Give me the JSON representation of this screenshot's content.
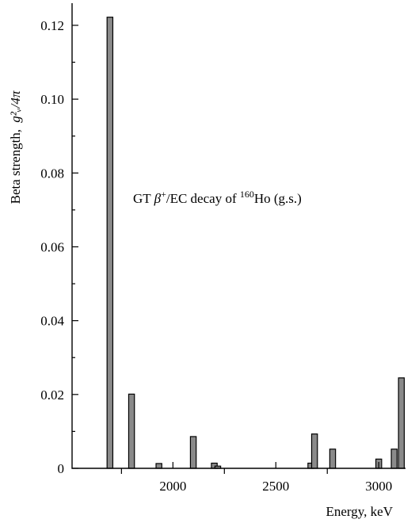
{
  "chart_data": {
    "type": "bar",
    "title": "",
    "xlabel": "Energy, keV",
    "ylabel": "Beta strength,",
    "ylabel_formula": "g²ᵥ/4π",
    "annotation": {
      "prefix": "GT ",
      "beta": "β",
      "plus": "+",
      "mid": "/EC decay of ",
      "mass": "160",
      "tail": "Ho (g.s.)"
    },
    "xlim": [
      1510,
      3130
    ],
    "ylim": [
      0,
      0.126
    ],
    "x_ticks": [
      {
        "value": 2000,
        "label": "2000"
      },
      {
        "value": 2500,
        "label": "2500"
      },
      {
        "value": 3000,
        "label": "3000"
      }
    ],
    "x_minor_ticks": [
      1750,
      2250,
      2750
    ],
    "y_ticks": [
      {
        "value": 0,
        "label": "0"
      },
      {
        "value": 0.02,
        "label": "0.02"
      },
      {
        "value": 0.04,
        "label": "0.04"
      },
      {
        "value": 0.06,
        "label": "0.06"
      },
      {
        "value": 0.08,
        "label": "0.08"
      },
      {
        "value": 0.1,
        "label": "0.10"
      },
      {
        "value": 0.12,
        "label": "0.12"
      }
    ],
    "y_minor_ticks": [
      0.01,
      0.03,
      0.05,
      0.07,
      0.09,
      0.11
    ],
    "bar_width_kev": 28,
    "bars": [
      {
        "x": 1694,
        "y": 0.1222
      },
      {
        "x": 1799,
        "y": 0.0201
      },
      {
        "x": 1932,
        "y": 0.0013
      },
      {
        "x": 2099,
        "y": 0.0086
      },
      {
        "x": 2201,
        "y": 0.0014
      },
      {
        "x": 2218,
        "y": 0.0006
      },
      {
        "x": 2670,
        "y": 0.0014
      },
      {
        "x": 2688,
        "y": 0.0093
      },
      {
        "x": 2776,
        "y": 0.0052
      },
      {
        "x": 3000,
        "y": 0.0025
      },
      {
        "x": 3075,
        "y": 0.0052
      },
      {
        "x": 3110,
        "y": 0.0245
      }
    ],
    "grid": false,
    "legend": "none"
  }
}
